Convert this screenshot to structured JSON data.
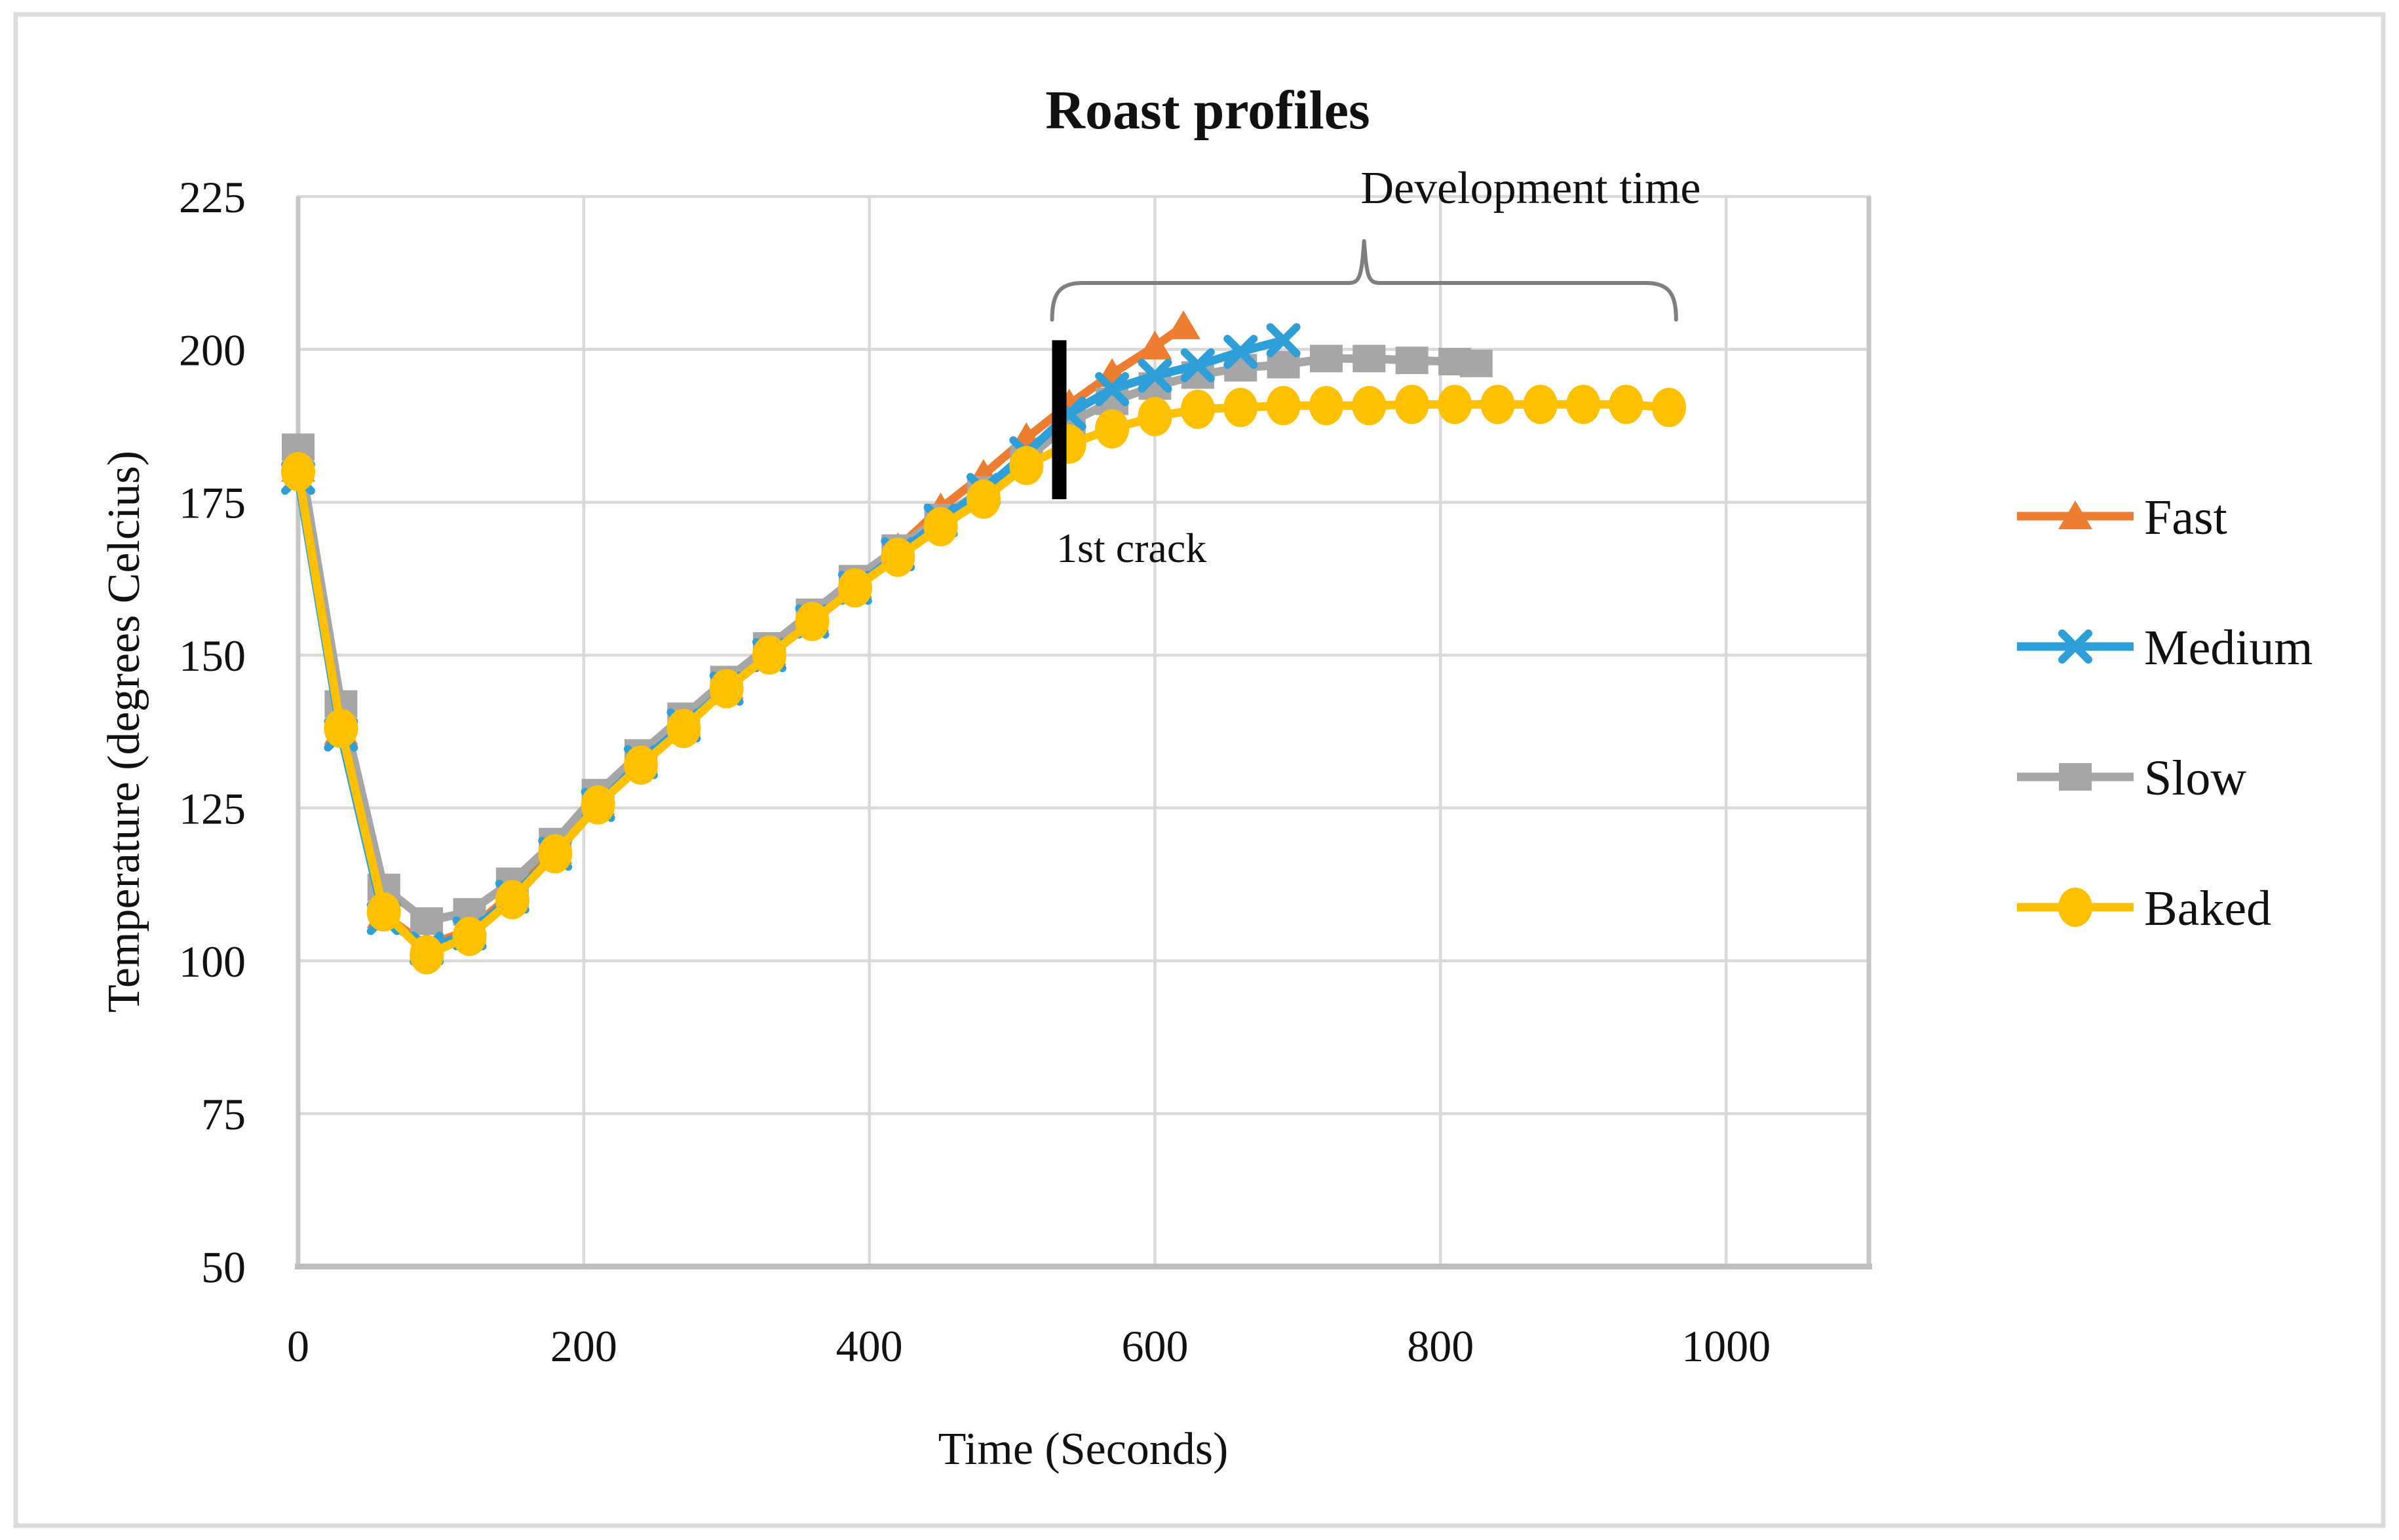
{
  "figure": {
    "background_color": "#ffffff",
    "border_color": "#dcdcdc"
  },
  "chart_data": {
    "type": "line",
    "title": "Roast profiles",
    "xlabel": "Time (Seconds)",
    "ylabel": "Temperature (degrees Celcius)",
    "xlim": [
      0,
      1100
    ],
    "ylim": [
      50,
      225
    ],
    "x_ticks": [
      0,
      200,
      400,
      600,
      800,
      1000
    ],
    "y_ticks": [
      225,
      200,
      175,
      150,
      125,
      100,
      75,
      50
    ],
    "grid": true,
    "gridline_color": "#d9d9d9",
    "axis_line_color": "#bfbfbf",
    "legend_position": "right",
    "series": [
      {
        "name": "Fast",
        "color": "#ED7D31",
        "marker": "triangle",
        "points": [
          [
            0,
            180.5
          ],
          [
            30,
            137.5
          ],
          [
            60,
            107.5
          ],
          [
            90,
            102.5
          ],
          [
            120,
            105
          ],
          [
            150,
            111
          ],
          [
            180,
            118
          ],
          [
            210,
            126
          ],
          [
            240,
            133
          ],
          [
            270,
            139
          ],
          [
            300,
            145
          ],
          [
            330,
            150.5
          ],
          [
            360,
            156
          ],
          [
            390,
            161.5
          ],
          [
            420,
            167.5
          ],
          [
            450,
            174
          ],
          [
            480,
            179.5
          ],
          [
            510,
            185.5
          ],
          [
            540,
            191
          ],
          [
            570,
            196
          ],
          [
            600,
            200.5
          ],
          [
            620,
            203.8
          ]
        ]
      },
      {
        "name": "Medium",
        "color": "#2E9FD9",
        "marker": "x",
        "points": [
          [
            0,
            179
          ],
          [
            30,
            137
          ],
          [
            60,
            107
          ],
          [
            90,
            102
          ],
          [
            120,
            104.5
          ],
          [
            150,
            110.5
          ],
          [
            180,
            117.5
          ],
          [
            210,
            125.5
          ],
          [
            240,
            132.5
          ],
          [
            270,
            138.5
          ],
          [
            300,
            144.5
          ],
          [
            330,
            150
          ],
          [
            360,
            155.5
          ],
          [
            390,
            161
          ],
          [
            420,
            166.5
          ],
          [
            450,
            172
          ],
          [
            480,
            177
          ],
          [
            510,
            183
          ],
          [
            540,
            189.5
          ],
          [
            570,
            193.5
          ],
          [
            600,
            195.7
          ],
          [
            630,
            197.4
          ],
          [
            660,
            199.6
          ],
          [
            690,
            201.5
          ]
        ]
      },
      {
        "name": "Slow",
        "color": "#A6A6A6",
        "marker": "square",
        "points": [
          [
            0,
            184
          ],
          [
            30,
            142
          ],
          [
            60,
            112
          ],
          [
            90,
            106.5
          ],
          [
            120,
            108
          ],
          [
            150,
            113
          ],
          [
            180,
            119.5
          ],
          [
            210,
            127.5
          ],
          [
            240,
            134
          ],
          [
            270,
            140
          ],
          [
            300,
            146
          ],
          [
            330,
            151.5
          ],
          [
            360,
            157
          ],
          [
            390,
            162.5
          ],
          [
            420,
            167.5
          ],
          [
            450,
            172.5
          ],
          [
            480,
            177
          ],
          [
            510,
            182
          ],
          [
            540,
            188
          ],
          [
            570,
            191.5
          ],
          [
            600,
            194
          ],
          [
            630,
            195.8
          ],
          [
            660,
            197
          ],
          [
            690,
            197.5
          ],
          [
            720,
            198.5
          ],
          [
            750,
            198.5
          ],
          [
            780,
            198.2
          ],
          [
            810,
            198
          ],
          [
            825,
            197.7
          ]
        ]
      },
      {
        "name": "Baked",
        "color": "#FFC000",
        "marker": "circle",
        "points": [
          [
            0,
            180
          ],
          [
            30,
            138
          ],
          [
            60,
            108
          ],
          [
            90,
            101
          ],
          [
            120,
            104
          ],
          [
            150,
            110
          ],
          [
            180,
            117.5
          ],
          [
            210,
            125.5
          ],
          [
            240,
            132
          ],
          [
            270,
            138
          ],
          [
            300,
            144.5
          ],
          [
            330,
            150
          ],
          [
            360,
            155.5
          ],
          [
            390,
            161
          ],
          [
            420,
            166
          ],
          [
            450,
            171
          ],
          [
            480,
            175.5
          ],
          [
            510,
            181
          ],
          [
            540,
            184.5
          ],
          [
            570,
            187
          ],
          [
            600,
            189
          ],
          [
            630,
            190.2
          ],
          [
            660,
            190.5
          ],
          [
            690,
            190.8
          ],
          [
            720,
            190.8
          ],
          [
            750,
            190.8
          ],
          [
            780,
            191
          ],
          [
            810,
            191
          ],
          [
            840,
            191
          ],
          [
            870,
            191
          ],
          [
            900,
            191
          ],
          [
            930,
            191
          ],
          [
            960,
            190.5
          ]
        ]
      }
    ],
    "annotations": {
      "first_crack": {
        "label": "1st crack",
        "time": 533,
        "temp_range": [
          175.5,
          201.5
        ]
      },
      "development_time": {
        "label": "Development time",
        "time_range": [
          528,
          965
        ]
      }
    }
  }
}
